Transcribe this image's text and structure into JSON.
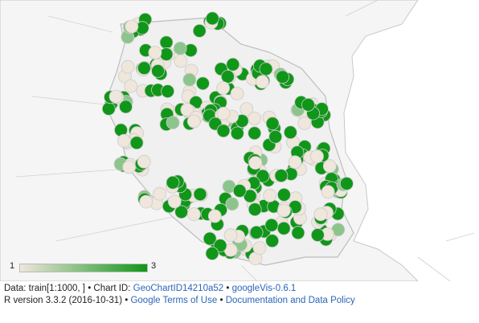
{
  "legend": {
    "min_label": "1",
    "max_label": "3",
    "color_min": "#efe6dc",
    "color_max": "#109618"
  },
  "map": {
    "region": "Tanzania",
    "marker_colors": {
      "low": "#efe6dc",
      "mid": "#8cc58c",
      "high": "#109618"
    },
    "marker_stroke": "#cccccc",
    "land_color": "#f5f5f5",
    "border_color": "#c8c8c8",
    "water_color": "#ffffff"
  },
  "footer": {
    "line1_prefix": "Data: train[1:1000, ] • Chart ID: ",
    "chart_id_link": "GeoChartID14210a52",
    "sep1": " • ",
    "googlevis_link": "googleVis-0.6.1",
    "line2_prefix": "R version 3.3.2 (2016-10-31) • ",
    "terms_link": "Google Terms of Use",
    "sep2": " • ",
    "docs_link": "Documentation and Data Policy"
  }
}
